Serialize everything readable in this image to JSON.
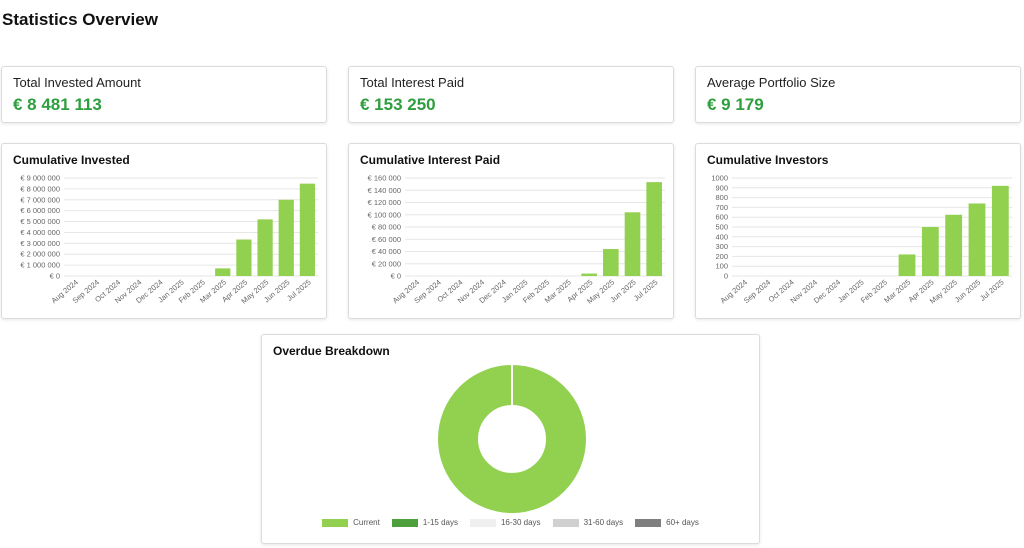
{
  "page": {
    "title": "Statistics Overview"
  },
  "colors": {
    "bar": "#92d050",
    "value": "#2e9e3e",
    "grid": "#e6e6e6",
    "axis_text": "#666666"
  },
  "stats": [
    {
      "label": "Total Invested Amount",
      "value": "€ 8 481 113"
    },
    {
      "label": "Total Interest Paid",
      "value": "€ 153 250"
    },
    {
      "label": "Average Portfolio Size",
      "value": "€ 9 179"
    }
  ],
  "chart_data": [
    {
      "type": "bar",
      "title": "Cumulative Invested",
      "categories": [
        "Aug 2024",
        "Sep 2024",
        "Oct 2024",
        "Nov 2024",
        "Dec 2024",
        "Jan 2025",
        "Feb 2025",
        "Mar 2025",
        "Apr 2025",
        "May 2025",
        "Jun 2025",
        "Jul 2025"
      ],
      "values": [
        0,
        0,
        0,
        0,
        0,
        0,
        0,
        700000,
        3350000,
        5200000,
        7000000,
        8481113
      ],
      "ylim": [
        0,
        9000000
      ],
      "yticks": [
        0,
        1000000,
        2000000,
        3000000,
        4000000,
        5000000,
        6000000,
        7000000,
        8000000,
        9000000
      ],
      "ytick_labels": [
        "€ 0",
        "€ 1 000 000",
        "€ 2 000 000",
        "€ 3 000 000",
        "€ 4 000 000",
        "€ 5 000 000",
        "€ 6 000 000",
        "€ 7 000 000",
        "€ 8 000 000",
        "€ 9 000 000"
      ],
      "grid": true
    },
    {
      "type": "bar",
      "title": "Cumulative Interest Paid",
      "categories": [
        "Aug 2024",
        "Sep 2024",
        "Oct 2024",
        "Nov 2024",
        "Dec 2024",
        "Jan 2025",
        "Feb 2025",
        "Mar 2025",
        "Apr 2025",
        "May 2025",
        "Jun 2025",
        "Jul 2025"
      ],
      "values": [
        0,
        0,
        0,
        0,
        0,
        0,
        0,
        0,
        4000,
        44000,
        104000,
        153250
      ],
      "ylim": [
        0,
        160000
      ],
      "yticks": [
        0,
        20000,
        40000,
        60000,
        80000,
        100000,
        120000,
        140000,
        160000
      ],
      "ytick_labels": [
        "€ 0",
        "€ 20 000",
        "€ 40 000",
        "€ 60 000",
        "€ 80 000",
        "€ 100 000",
        "€ 120 000",
        "€ 140 000",
        "€ 160 000"
      ],
      "grid": true
    },
    {
      "type": "bar",
      "title": "Cumulative Investors",
      "categories": [
        "Aug 2024",
        "Sep 2024",
        "Oct 2024",
        "Nov 2024",
        "Dec 2024",
        "Jan 2025",
        "Feb 2025",
        "Mar 2025",
        "Apr 2025",
        "May 2025",
        "Jun 2025",
        "Jul 2025"
      ],
      "values": [
        0,
        0,
        0,
        0,
        0,
        0,
        0,
        220,
        500,
        625,
        740,
        920
      ],
      "ylim": [
        0,
        1000
      ],
      "yticks": [
        0,
        100,
        200,
        300,
        400,
        500,
        600,
        700,
        800,
        900,
        1000
      ],
      "ytick_labels": [
        "0",
        "100",
        "200",
        "300",
        "400",
        "500",
        "600",
        "700",
        "800",
        "900",
        "1000"
      ],
      "grid": true
    },
    {
      "type": "pie",
      "title": "Overdue Breakdown",
      "labels": [
        "Current",
        "1-15 days",
        "16-30 days",
        "31-60 days",
        "60+ days"
      ],
      "values": [
        100,
        0,
        0,
        0,
        0
      ],
      "colors": [
        "#92d050",
        "#4ea03c",
        "#efefef",
        "#d0d0d0",
        "#7f7f7f"
      ],
      "legend": "bottom",
      "donut": true
    }
  ]
}
